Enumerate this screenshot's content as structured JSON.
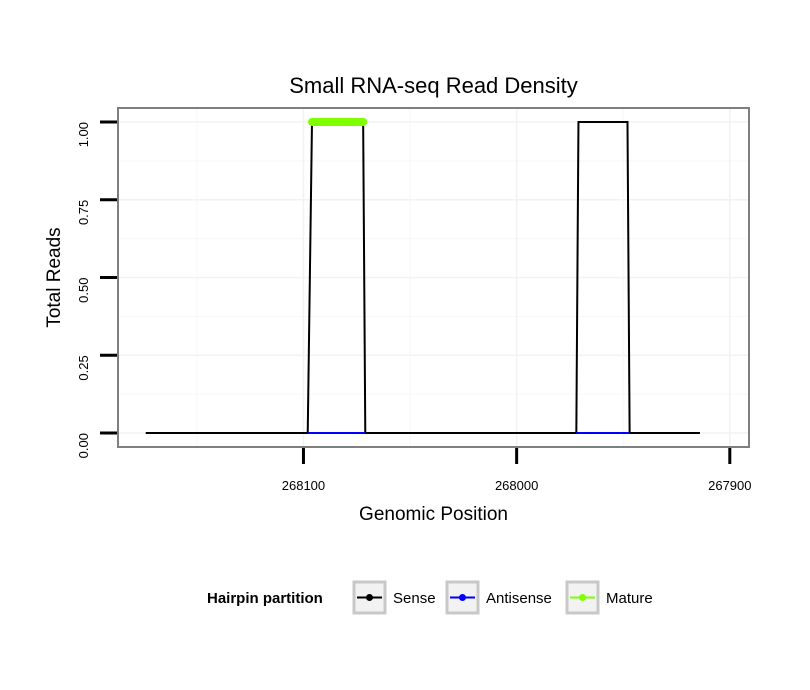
{
  "chart_data": {
    "type": "line",
    "title": "Small RNA-seq Read Density",
    "xlabel": "Genomic Position",
    "ylabel": "Total Reads",
    "x_reversed": true,
    "xlim": [
      268187,
      267891
    ],
    "ylim": [
      -0.045,
      1.045
    ],
    "x_ticks": [
      268100,
      268000,
      267900
    ],
    "x_tick_labels": [
      "268100",
      "268000",
      "267900"
    ],
    "y_ticks": [
      0.0,
      0.25,
      0.5,
      0.75,
      1.0
    ],
    "y_tick_labels": [
      "0.00",
      "0.25",
      "0.50",
      "0.75",
      "1.00"
    ],
    "grid": true,
    "legend": {
      "title": "Hairpin partition",
      "placement": "bottom",
      "entries": [
        {
          "label": "Sense",
          "color": "#000000"
        },
        {
          "label": "Antisense",
          "color": "#0000ff"
        },
        {
          "label": "Mature",
          "color": "#7fff00"
        }
      ]
    },
    "series": [
      {
        "name": "Sense",
        "color": "#000000",
        "x": [
          268174,
          268098,
          268096,
          268072,
          268071,
          267972,
          267971,
          267948,
          267947,
          267914
        ],
        "y": [
          0,
          0,
          1,
          1,
          0,
          0,
          1,
          1,
          0,
          0
        ]
      },
      {
        "name": "Antisense",
        "color": "#0000ff",
        "segments": [
          {
            "x": [
              268098,
              268071
            ],
            "y": [
              0,
              0
            ]
          },
          {
            "x": [
              267972,
              267947
            ],
            "y": [
              0,
              0
            ]
          }
        ]
      },
      {
        "name": "Mature",
        "color": "#7fff00",
        "x": [
          268096,
          268072
        ],
        "y": [
          1,
          1
        ]
      }
    ]
  }
}
